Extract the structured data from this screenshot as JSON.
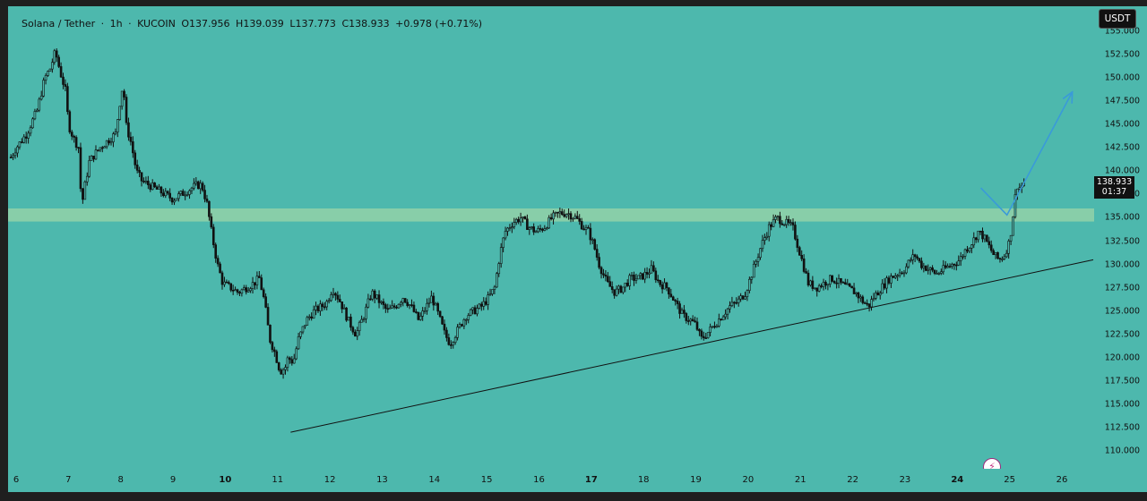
{
  "header": {
    "symbol": "Solana / Tether",
    "interval": "1h",
    "exchange": "KUCOIN",
    "open": "O137.956",
    "high": "H139.039",
    "low": "L137.773",
    "close": "C138.933",
    "change": "+0.978 (+0.71%)"
  },
  "currency_label": "USDT",
  "last_price": {
    "price": "138.933",
    "countdown": "01:37"
  },
  "colors": {
    "background": "#4db8ad",
    "zone": "#8fd0a8",
    "candles": "#111111",
    "projection": "#3a9ad9",
    "trendline": "#111111"
  },
  "icons": {
    "logo": "tradingview-bolt-icon"
  },
  "chart_data": {
    "type": "candlestick",
    "symbol": "SOL/USDT",
    "x_labels": [
      {
        "label": "6",
        "day": 6,
        "bold": false
      },
      {
        "label": "7",
        "day": 7,
        "bold": false
      },
      {
        "label": "8",
        "day": 8,
        "bold": false
      },
      {
        "label": "9",
        "day": 9,
        "bold": false
      },
      {
        "label": "10",
        "day": 10,
        "bold": true
      },
      {
        "label": "11",
        "day": 11,
        "bold": false
      },
      {
        "label": "12",
        "day": 12,
        "bold": false
      },
      {
        "label": "13",
        "day": 13,
        "bold": false
      },
      {
        "label": "14",
        "day": 14,
        "bold": false
      },
      {
        "label": "15",
        "day": 15,
        "bold": false
      },
      {
        "label": "16",
        "day": 16,
        "bold": false
      },
      {
        "label": "17",
        "day": 17,
        "bold": true
      },
      {
        "label": "18",
        "day": 18,
        "bold": false
      },
      {
        "label": "19",
        "day": 19,
        "bold": false
      },
      {
        "label": "20",
        "day": 20,
        "bold": false
      },
      {
        "label": "21",
        "day": 21,
        "bold": false
      },
      {
        "label": "22",
        "day": 22,
        "bold": false
      },
      {
        "label": "23",
        "day": 23,
        "bold": false
      },
      {
        "label": "24",
        "day": 24,
        "bold": true
      },
      {
        "label": "25",
        "day": 25,
        "bold": false
      },
      {
        "label": "26",
        "day": 26,
        "bold": false
      }
    ],
    "y_ticks": [
      "155.000",
      "152.500",
      "150.000",
      "147.500",
      "145.000",
      "142.500",
      "140.000",
      "137.500",
      "135.000",
      "132.500",
      "130.000",
      "127.500",
      "125.000",
      "122.500",
      "120.000",
      "117.500",
      "115.000",
      "112.500",
      "110.000"
    ],
    "ylim": [
      107.5,
      156.5
    ],
    "xlim": [
      5.9,
      26.6
    ],
    "resistance_zone": [
      134.6,
      136.0
    ],
    "trendline": [
      [
        11.25,
        112.0
      ],
      [
        26.6,
        130.5
      ]
    ],
    "projection": [
      [
        24.45,
        138.2
      ],
      [
        24.95,
        135.3
      ],
      [
        26.2,
        148.5
      ]
    ],
    "price_path": [
      [
        5.9,
        141.5
      ],
      [
        6.0,
        142.5
      ],
      [
        6.2,
        144.0
      ],
      [
        6.4,
        146.5
      ],
      [
        6.55,
        150.0
      ],
      [
        6.65,
        151.0
      ],
      [
        6.75,
        152.8
      ],
      [
        6.85,
        150.5
      ],
      [
        6.95,
        148.5
      ],
      [
        7.0,
        145.0
      ],
      [
        7.1,
        143.5
      ],
      [
        7.2,
        142.5
      ],
      [
        7.25,
        136.0
      ],
      [
        7.3,
        138.0
      ],
      [
        7.4,
        141.0
      ],
      [
        7.5,
        141.8
      ],
      [
        7.6,
        142.5
      ],
      [
        7.7,
        143.0
      ],
      [
        7.8,
        143.5
      ],
      [
        7.9,
        144.0
      ],
      [
        8.0,
        148.0
      ],
      [
        8.05,
        149.5
      ],
      [
        8.1,
        145.0
      ],
      [
        8.2,
        143.0
      ],
      [
        8.3,
        140.0
      ],
      [
        8.4,
        139.0
      ],
      [
        8.55,
        138.5
      ],
      [
        8.7,
        138.0
      ],
      [
        8.85,
        137.5
      ],
      [
        9.0,
        137.0
      ],
      [
        9.15,
        137.5
      ],
      [
        9.3,
        138.0
      ],
      [
        9.45,
        138.5
      ],
      [
        9.55,
        138.5
      ],
      [
        9.65,
        136.5
      ],
      [
        9.75,
        133.0
      ],
      [
        9.85,
        130.0
      ],
      [
        9.95,
        128.0
      ],
      [
        10.1,
        127.5
      ],
      [
        10.25,
        127.0
      ],
      [
        10.4,
        127.5
      ],
      [
        10.55,
        128.0
      ],
      [
        10.65,
        128.5
      ],
      [
        10.75,
        126.0
      ],
      [
        10.85,
        122.0
      ],
      [
        10.95,
        120.5
      ],
      [
        11.05,
        118.5
      ],
      [
        11.15,
        119.0
      ],
      [
        11.2,
        120.0
      ],
      [
        11.3,
        119.5
      ],
      [
        11.4,
        122.0
      ],
      [
        11.55,
        124.0
      ],
      [
        11.7,
        125.0
      ],
      [
        11.85,
        125.5
      ],
      [
        11.95,
        126.0
      ],
      [
        12.05,
        127.5
      ],
      [
        12.2,
        126.0
      ],
      [
        12.35,
        124.0
      ],
      [
        12.5,
        122.5
      ],
      [
        12.65,
        124.5
      ],
      [
        12.8,
        127.0
      ],
      [
        12.95,
        126.0
      ],
      [
        13.1,
        125.0
      ],
      [
        13.25,
        125.5
      ],
      [
        13.4,
        126.5
      ],
      [
        13.55,
        125.5
      ],
      [
        13.7,
        124.0
      ],
      [
        13.85,
        125.5
      ],
      [
        13.95,
        126.5
      ],
      [
        14.05,
        125.0
      ],
      [
        14.2,
        122.5
      ],
      [
        14.3,
        121.5
      ],
      [
        14.45,
        123.0
      ],
      [
        14.6,
        124.5
      ],
      [
        14.75,
        125.0
      ],
      [
        14.9,
        125.5
      ],
      [
        15.05,
        126.5
      ],
      [
        15.15,
        127.5
      ],
      [
        15.25,
        131.0
      ],
      [
        15.35,
        133.5
      ],
      [
        15.5,
        134.5
      ],
      [
        15.65,
        135.0
      ],
      [
        15.8,
        134.0
      ],
      [
        15.95,
        133.5
      ],
      [
        16.1,
        134.0
      ],
      [
        16.25,
        135.0
      ],
      [
        16.4,
        135.5
      ],
      [
        16.55,
        135.5
      ],
      [
        16.7,
        135.0
      ],
      [
        16.85,
        134.0
      ],
      [
        16.95,
        133.5
      ],
      [
        17.05,
        132.0
      ],
      [
        17.15,
        130.0
      ],
      [
        17.3,
        128.0
      ],
      [
        17.45,
        127.0
      ],
      [
        17.6,
        127.5
      ],
      [
        17.75,
        128.5
      ],
      [
        17.9,
        128.5
      ],
      [
        18.05,
        129.0
      ],
      [
        18.15,
        129.5
      ],
      [
        18.3,
        128.0
      ],
      [
        18.45,
        127.5
      ],
      [
        18.6,
        126.0
      ],
      [
        18.75,
        124.5
      ],
      [
        18.9,
        124.0
      ],
      [
        19.0,
        123.5
      ],
      [
        19.1,
        122.0
      ],
      [
        19.2,
        122.5
      ],
      [
        19.35,
        123.5
      ],
      [
        19.5,
        124.5
      ],
      [
        19.65,
        125.5
      ],
      [
        19.8,
        126.0
      ],
      [
        19.95,
        127.0
      ],
      [
        20.1,
        129.5
      ],
      [
        20.25,
        132.0
      ],
      [
        20.4,
        134.0
      ],
      [
        20.55,
        135.0
      ],
      [
        20.7,
        134.5
      ],
      [
        20.85,
        134.0
      ],
      [
        20.95,
        132.0
      ],
      [
        21.05,
        130.0
      ],
      [
        21.15,
        128.0
      ],
      [
        21.3,
        127.5
      ],
      [
        21.45,
        128.0
      ],
      [
        21.6,
        128.5
      ],
      [
        21.75,
        128.0
      ],
      [
        21.9,
        127.5
      ],
      [
        22.05,
        127.0
      ],
      [
        22.2,
        126.0
      ],
      [
        22.3,
        125.5
      ],
      [
        22.4,
        126.5
      ],
      [
        22.55,
        127.5
      ],
      [
        22.7,
        128.5
      ],
      [
        22.85,
        129.0
      ],
      [
        23.0,
        129.5
      ],
      [
        23.1,
        130.5
      ],
      [
        23.2,
        131.0
      ],
      [
        23.3,
        130.0
      ],
      [
        23.45,
        129.5
      ],
      [
        23.6,
        129.0
      ],
      [
        23.75,
        129.5
      ],
      [
        23.9,
        130.0
      ],
      [
        24.05,
        130.5
      ],
      [
        24.15,
        131.5
      ],
      [
        24.3,
        132.5
      ],
      [
        24.4,
        133.5
      ],
      [
        24.5,
        133.0
      ],
      [
        24.6,
        132.0
      ],
      [
        24.7,
        131.0
      ],
      [
        24.8,
        130.5
      ],
      [
        24.9,
        131.0
      ],
      [
        25.0,
        132.5
      ],
      [
        25.05,
        134.5
      ],
      [
        25.1,
        137.0
      ],
      [
        25.15,
        138.5
      ],
      [
        25.2,
        138.2
      ],
      [
        25.3,
        138.9
      ]
    ]
  }
}
